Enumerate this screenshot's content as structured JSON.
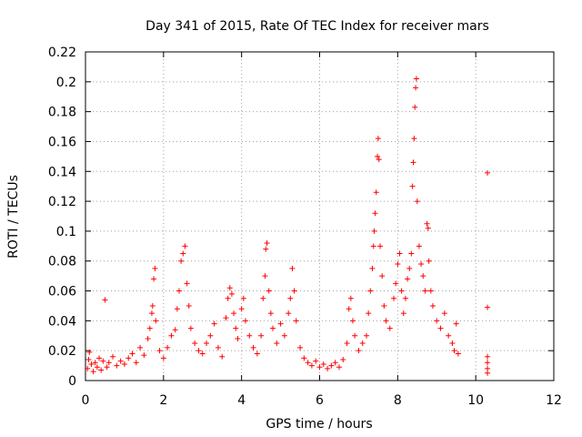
{
  "chart_data": {
    "type": "scatter",
    "title": "Day 341 of 2015, Rate Of TEC Index for receiver mars",
    "xlabel": "GPS time / hours",
    "ylabel": "ROTI / TECUs",
    "xlim": [
      0,
      12
    ],
    "ylim": [
      0,
      0.22
    ],
    "xticks": [
      0,
      2,
      4,
      6,
      8,
      10,
      12
    ],
    "xtick_labels": [
      "0",
      "2",
      "4",
      "6",
      "8",
      "10",
      "12"
    ],
    "yticks": [
      0,
      0.02,
      0.04,
      0.06,
      0.08,
      0.1,
      0.12,
      0.14,
      0.16,
      0.18,
      0.2,
      0.22
    ],
    "ytick_labels": [
      "0",
      "0.02",
      "0.04",
      "0.06",
      "0.08",
      "0.1",
      "0.12",
      "0.14",
      "0.16",
      "0.18",
      "0.2",
      "0.22"
    ],
    "grid": true,
    "marker": "+",
    "color": "#ff0000",
    "series": [
      {
        "name": "ROTI",
        "points": [
          [
            0.05,
            0.008
          ],
          [
            0.08,
            0.014
          ],
          [
            0.1,
            0.019
          ],
          [
            0.15,
            0.011
          ],
          [
            0.2,
            0.006
          ],
          [
            0.25,
            0.012
          ],
          [
            0.3,
            0.009
          ],
          [
            0.35,
            0.015
          ],
          [
            0.4,
            0.007
          ],
          [
            0.45,
            0.013
          ],
          [
            0.5,
            0.054
          ],
          [
            0.55,
            0.009
          ],
          [
            0.6,
            0.012
          ],
          [
            0.7,
            0.016
          ],
          [
            0.8,
            0.01
          ],
          [
            0.9,
            0.013
          ],
          [
            1.0,
            0.011
          ],
          [
            1.1,
            0.015
          ],
          [
            1.2,
            0.018
          ],
          [
            1.3,
            0.012
          ],
          [
            1.4,
            0.022
          ],
          [
            1.5,
            0.017
          ],
          [
            1.6,
            0.028
          ],
          [
            1.65,
            0.035
          ],
          [
            1.7,
            0.045
          ],
          [
            1.72,
            0.05
          ],
          [
            1.75,
            0.068
          ],
          [
            1.78,
            0.075
          ],
          [
            1.8,
            0.04
          ],
          [
            1.9,
            0.02
          ],
          [
            2.0,
            0.015
          ],
          [
            2.1,
            0.022
          ],
          [
            2.2,
            0.03
          ],
          [
            2.3,
            0.034
          ],
          [
            2.35,
            0.048
          ],
          [
            2.4,
            0.06
          ],
          [
            2.45,
            0.08
          ],
          [
            2.5,
            0.085
          ],
          [
            2.55,
            0.09
          ],
          [
            2.6,
            0.065
          ],
          [
            2.65,
            0.05
          ],
          [
            2.7,
            0.035
          ],
          [
            2.8,
            0.025
          ],
          [
            2.9,
            0.02
          ],
          [
            3.0,
            0.018
          ],
          [
            3.1,
            0.025
          ],
          [
            3.2,
            0.03
          ],
          [
            3.3,
            0.038
          ],
          [
            3.4,
            0.022
          ],
          [
            3.5,
            0.016
          ],
          [
            3.6,
            0.042
          ],
          [
            3.65,
            0.055
          ],
          [
            3.7,
            0.062
          ],
          [
            3.75,
            0.058
          ],
          [
            3.8,
            0.045
          ],
          [
            3.85,
            0.035
          ],
          [
            3.9,
            0.028
          ],
          [
            4.0,
            0.048
          ],
          [
            4.05,
            0.055
          ],
          [
            4.1,
            0.04
          ],
          [
            4.2,
            0.03
          ],
          [
            4.3,
            0.022
          ],
          [
            4.4,
            0.018
          ],
          [
            4.5,
            0.03
          ],
          [
            4.55,
            0.055
          ],
          [
            4.6,
            0.07
          ],
          [
            4.62,
            0.088
          ],
          [
            4.65,
            0.092
          ],
          [
            4.7,
            0.06
          ],
          [
            4.75,
            0.045
          ],
          [
            4.8,
            0.035
          ],
          [
            4.9,
            0.025
          ],
          [
            5.0,
            0.038
          ],
          [
            5.1,
            0.03
          ],
          [
            5.2,
            0.045
          ],
          [
            5.25,
            0.055
          ],
          [
            5.3,
            0.075
          ],
          [
            5.35,
            0.06
          ],
          [
            5.4,
            0.04
          ],
          [
            5.5,
            0.022
          ],
          [
            5.6,
            0.015
          ],
          [
            5.7,
            0.012
          ],
          [
            5.8,
            0.01
          ],
          [
            5.9,
            0.013
          ],
          [
            6.0,
            0.009
          ],
          [
            6.1,
            0.011
          ],
          [
            6.2,
            0.008
          ],
          [
            6.3,
            0.01
          ],
          [
            6.4,
            0.012
          ],
          [
            6.5,
            0.009
          ],
          [
            6.6,
            0.014
          ],
          [
            6.7,
            0.025
          ],
          [
            6.75,
            0.048
          ],
          [
            6.8,
            0.055
          ],
          [
            6.85,
            0.04
          ],
          [
            6.9,
            0.03
          ],
          [
            7.0,
            0.02
          ],
          [
            7.1,
            0.025
          ],
          [
            7.2,
            0.03
          ],
          [
            7.25,
            0.045
          ],
          [
            7.3,
            0.06
          ],
          [
            7.35,
            0.075
          ],
          [
            7.38,
            0.09
          ],
          [
            7.4,
            0.1
          ],
          [
            7.42,
            0.112
          ],
          [
            7.45,
            0.126
          ],
          [
            7.48,
            0.15
          ],
          [
            7.5,
            0.162
          ],
          [
            7.52,
            0.148
          ],
          [
            7.55,
            0.09
          ],
          [
            7.6,
            0.07
          ],
          [
            7.65,
            0.05
          ],
          [
            7.7,
            0.04
          ],
          [
            7.8,
            0.035
          ],
          [
            7.9,
            0.055
          ],
          [
            7.95,
            0.065
          ],
          [
            8.0,
            0.078
          ],
          [
            8.05,
            0.085
          ],
          [
            8.1,
            0.06
          ],
          [
            8.15,
            0.045
          ],
          [
            8.2,
            0.055
          ],
          [
            8.25,
            0.068
          ],
          [
            8.3,
            0.075
          ],
          [
            8.35,
            0.085
          ],
          [
            8.38,
            0.13
          ],
          [
            8.4,
            0.146
          ],
          [
            8.42,
            0.162
          ],
          [
            8.44,
            0.183
          ],
          [
            8.46,
            0.196
          ],
          [
            8.48,
            0.202
          ],
          [
            8.5,
            0.12
          ],
          [
            8.55,
            0.09
          ],
          [
            8.6,
            0.078
          ],
          [
            8.65,
            0.07
          ],
          [
            8.7,
            0.06
          ],
          [
            8.75,
            0.105
          ],
          [
            8.78,
            0.102
          ],
          [
            8.8,
            0.08
          ],
          [
            8.85,
            0.06
          ],
          [
            8.9,
            0.05
          ],
          [
            9.0,
            0.04
          ],
          [
            9.1,
            0.035
          ],
          [
            9.2,
            0.045
          ],
          [
            9.3,
            0.03
          ],
          [
            9.4,
            0.025
          ],
          [
            9.45,
            0.02
          ],
          [
            9.5,
            0.038
          ],
          [
            9.55,
            0.018
          ],
          [
            10.3,
            0.139
          ],
          [
            10.3,
            0.049
          ],
          [
            10.3,
            0.016
          ],
          [
            10.3,
            0.012
          ],
          [
            10.3,
            0.008
          ],
          [
            10.3,
            0.005
          ]
        ]
      }
    ]
  }
}
